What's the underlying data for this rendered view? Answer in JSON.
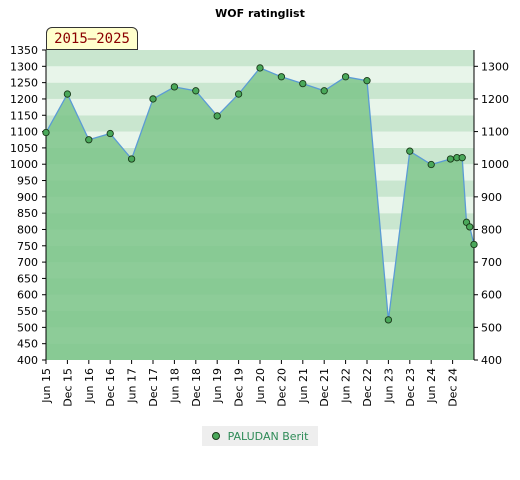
{
  "title": "WOF ratinglist",
  "badge": "2015–2025",
  "chart_data": {
    "type": "line",
    "title": "WOF ratinglist",
    "xlabel": "",
    "ylabel": "",
    "ylim": [
      400,
      1350
    ],
    "y_ticks_left": [
      400,
      450,
      500,
      550,
      600,
      650,
      700,
      750,
      800,
      850,
      900,
      950,
      1000,
      1050,
      1100,
      1150,
      1200,
      1250,
      1300,
      1350
    ],
    "y_ticks_right": [
      400,
      500,
      600,
      700,
      800,
      900,
      1000,
      1100,
      1200,
      1300
    ],
    "x_tick_labels": [
      "Jun 15",
      "Dec 15",
      "Jun 16",
      "Dec 16",
      "Jun 17",
      "Dec 17",
      "Jun 18",
      "Dec 18",
      "Jun 19",
      "Dec 19",
      "Jun 20",
      "Dec 20",
      "Jun 21",
      "Dec 21",
      "Jun 22",
      "Dec 22",
      "Jun 23",
      "Dec 23",
      "Jun 24",
      "Dec 24"
    ],
    "legend_position": "bottom-center",
    "series": [
      {
        "name": "PALUDAN Berit",
        "x": [
          0,
          1,
          2,
          3,
          4,
          5,
          6,
          7,
          8,
          9,
          10,
          11,
          12,
          13,
          14,
          15,
          16,
          17,
          18,
          18.9,
          19.2,
          19.45,
          19.65,
          19.8,
          20
        ],
        "values": [
          1097,
          1215,
          1075,
          1094,
          1016,
          1200,
          1237,
          1225,
          1148,
          1215,
          1295,
          1268,
          1247,
          1225,
          1268,
          1256,
          523,
          1040,
          999,
          1016,
          1020,
          1020,
          822,
          808,
          754
        ]
      }
    ],
    "colors": {
      "line": "#5b9bd5",
      "marker": "#4aa85a",
      "marker_edge": "#1a3a1a",
      "fill": "#7cc48a",
      "band_dark": "#c9e6cf",
      "band_light": "#e8f5ea"
    }
  },
  "legend": {
    "label": "PALUDAN Berit"
  }
}
